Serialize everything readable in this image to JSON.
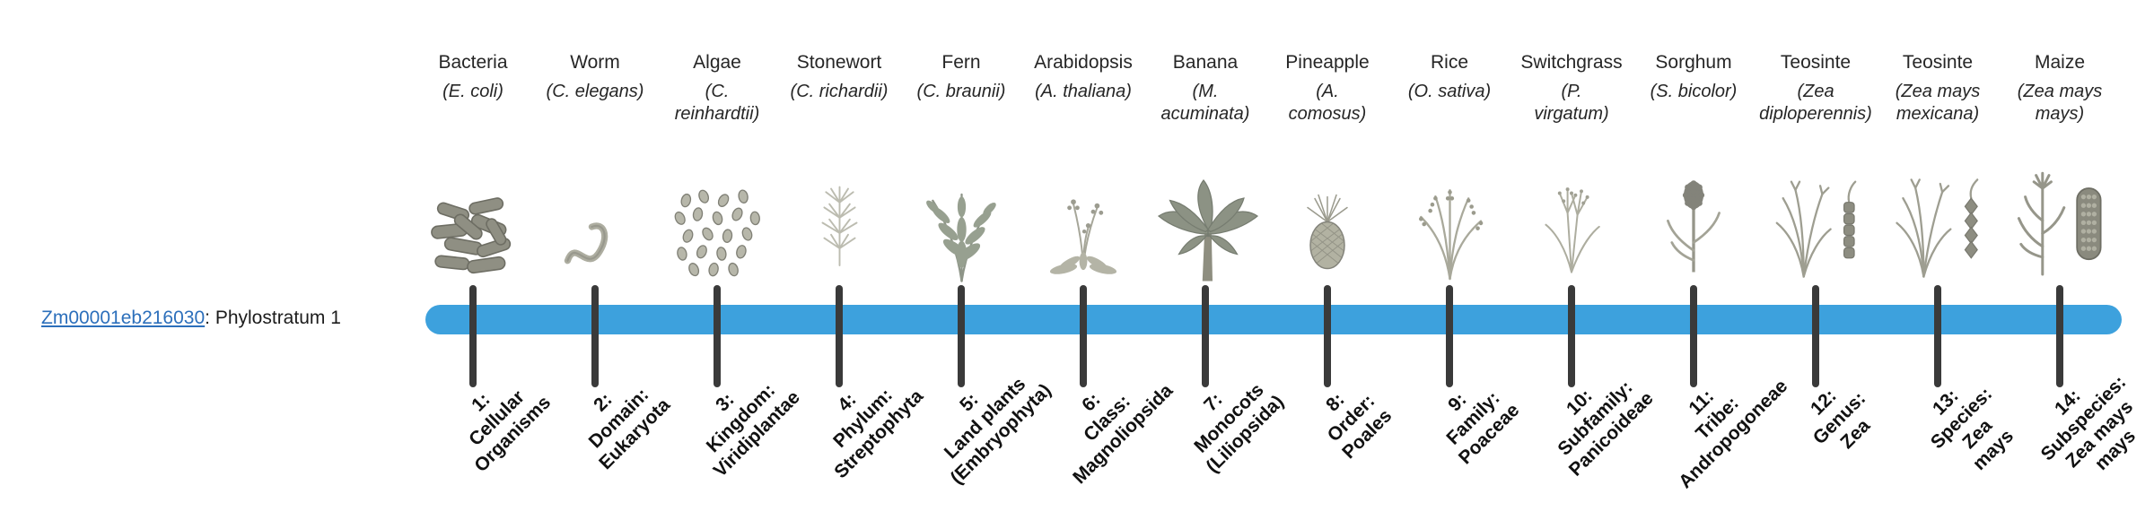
{
  "gene": {
    "id": "Zm00001eb216030",
    "suffix": ": Phylostratum 1",
    "link_color": "#2c6fbb"
  },
  "timeline": {
    "bar_color": "#3da1dd",
    "tick_color": "#3a3a3a"
  },
  "organisms": [
    {
      "name": "Bacteria",
      "scientific": "(E. coli)",
      "icon": "bacteria-icon"
    },
    {
      "name": "Worm",
      "scientific": "(C. elegans)",
      "icon": "worm-icon"
    },
    {
      "name": "Algae",
      "scientific": "(C.\nreinhardtii)",
      "icon": "algae-icon"
    },
    {
      "name": "Stonewort",
      "scientific": "(C. richardii)",
      "icon": "stonewort-icon"
    },
    {
      "name": "Fern",
      "scientific": "(C. braunii)",
      "icon": "fern-icon"
    },
    {
      "name": "Arabidopsis",
      "scientific": "(A. thaliana)",
      "icon": "arabidopsis-icon"
    },
    {
      "name": "Banana",
      "scientific": "(M.\nacuminata)",
      "icon": "banana-plant-icon"
    },
    {
      "name": "Pineapple",
      "scientific": "(A.\ncomosus)",
      "icon": "pineapple-icon"
    },
    {
      "name": "Rice",
      "scientific": "(O. sativa)",
      "icon": "rice-icon"
    },
    {
      "name": "Switchgrass",
      "scientific": "(P.\nvirgatum)",
      "icon": "switchgrass-icon"
    },
    {
      "name": "Sorghum",
      "scientific": "(S. bicolor)",
      "icon": "sorghum-icon"
    },
    {
      "name": "Teosinte",
      "scientific": "(Zea\ndiploperennis)",
      "icon": "teosinte-plant-icon"
    },
    {
      "name": "Teosinte",
      "scientific": "(Zea mays\nmexicana)",
      "icon": "teosinte-ear-icon"
    },
    {
      "name": "Maize",
      "scientific": "(Zea mays\nmays)",
      "icon": "maize-icon"
    }
  ],
  "strata": [
    "1:\nCellular\nOrganisms",
    "2:\nDomain:\nEukaryota",
    "3:\nKingdom:\nViridiplantae",
    "4:\nPhylum:\nStreptophyta",
    "5:\nLand plants\n(Embryophyta)",
    "6:\nClass:\nMagnoliopsida",
    "7:\nMonocots\n(Liliopsida)",
    "8:\nOrder:\nPoales",
    "9:\nFamily:\nPoaceae",
    "10:\nSubfamily:\nPanicoideae",
    "11:\nTribe:\nAndropogoneae",
    "12:\nGenus:\nZea",
    "13:\nSpecies:\nZea\nmays",
    "14:\nSubspecies:\nZea mays\nmays"
  ]
}
